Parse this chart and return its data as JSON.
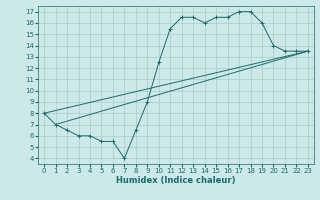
{
  "xlabel": "Humidex (Indice chaleur)",
  "bg_color": "#cce8e8",
  "grid_color": "#aacccc",
  "line_color": "#1a6b6b",
  "xlim": [
    -0.5,
    23.5
  ],
  "ylim": [
    3.5,
    17.5
  ],
  "xticks": [
    0,
    1,
    2,
    3,
    4,
    5,
    6,
    7,
    8,
    9,
    10,
    11,
    12,
    13,
    14,
    15,
    16,
    17,
    18,
    19,
    20,
    21,
    22,
    23
  ],
  "yticks": [
    4,
    5,
    6,
    7,
    8,
    9,
    10,
    11,
    12,
    13,
    14,
    15,
    16,
    17
  ],
  "line_zigzag": {
    "x": [
      0,
      1,
      2,
      3,
      4,
      5,
      6,
      7,
      8,
      9,
      10,
      11,
      12,
      13,
      14,
      15,
      16,
      17,
      18,
      19,
      20,
      21,
      22,
      23
    ],
    "y": [
      8,
      7,
      6.5,
      6,
      6,
      5.5,
      5.5,
      4,
      6.5,
      9,
      12.5,
      15.5,
      16.5,
      16.5,
      16,
      16.5,
      16.5,
      17,
      17,
      16,
      14,
      13.5,
      13.5,
      13.5
    ]
  },
  "line_upper": {
    "x": [
      0,
      23
    ],
    "y": [
      8,
      13.5
    ]
  },
  "line_lower": {
    "x": [
      1,
      23
    ],
    "y": [
      7,
      13.5
    ]
  }
}
